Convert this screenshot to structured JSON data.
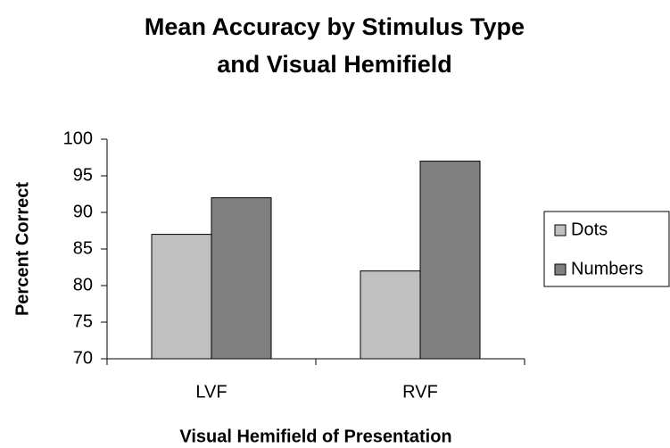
{
  "chart_data": {
    "type": "bar",
    "title": [
      "Mean Accuracy by Stimulus Type",
      "and  Visual Hemifield"
    ],
    "x_label": "Visual Hemifield of Presentation",
    "y_label": "Percent Correct",
    "categories": [
      "LVF",
      "RVF"
    ],
    "series": [
      {
        "name": "Dots",
        "color": "#c0c0c0",
        "values": [
          87,
          82
        ]
      },
      {
        "name": "Numbers",
        "color": "#808080",
        "values": [
          92,
          97
        ]
      }
    ],
    "ylim": [
      70,
      100
    ],
    "yticks": [
      70,
      75,
      80,
      85,
      90,
      95,
      100
    ],
    "grid": false,
    "legend": "right"
  }
}
